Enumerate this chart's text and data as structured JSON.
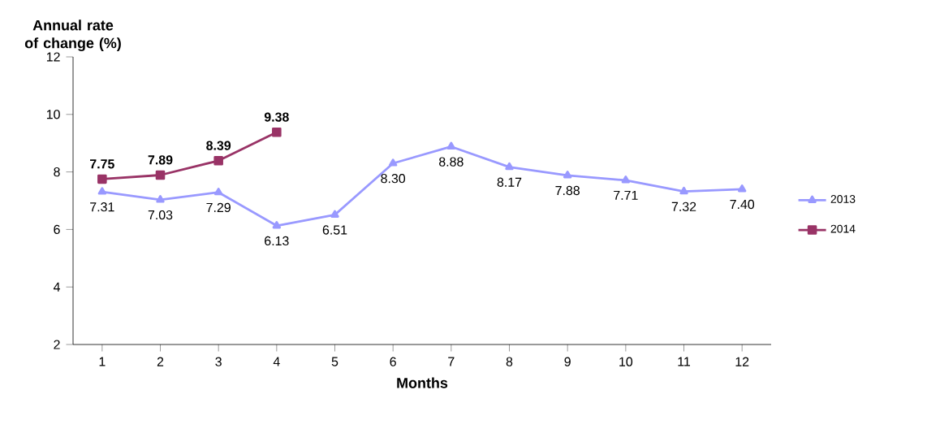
{
  "chart_data": {
    "type": "line",
    "ylabel": "Annual rate of change (%)",
    "xlabel": "Months",
    "categories": [
      "1",
      "2",
      "3",
      "4",
      "5",
      "6",
      "7",
      "8",
      "9",
      "10",
      "11",
      "12"
    ],
    "series": [
      {
        "name": "2013",
        "color": "#9999ff",
        "marker": "triangle",
        "values": [
          7.31,
          7.03,
          7.29,
          6.13,
          6.51,
          8.3,
          8.88,
          8.17,
          7.88,
          7.71,
          7.32,
          7.4
        ],
        "value_labels": [
          "7.31",
          "7.03",
          "7.29",
          "6.13",
          "6.51",
          "8.30",
          "8.88",
          "8.17",
          "7.88",
          "7.71",
          "7.32",
          "7.40"
        ]
      },
      {
        "name": "2014",
        "color": "#993366",
        "marker": "square",
        "values": [
          7.75,
          7.89,
          8.39,
          9.38,
          null,
          null,
          null,
          null,
          null,
          null,
          null,
          null
        ],
        "value_labels": [
          "7.75",
          "7.89",
          "8.39",
          "9.38",
          null,
          null,
          null,
          null,
          null,
          null,
          null,
          null
        ]
      }
    ],
    "ylim": [
      2,
      12
    ],
    "yticks": [
      2,
      4,
      6,
      8,
      10,
      12
    ],
    "grid": false,
    "legend": "right"
  }
}
